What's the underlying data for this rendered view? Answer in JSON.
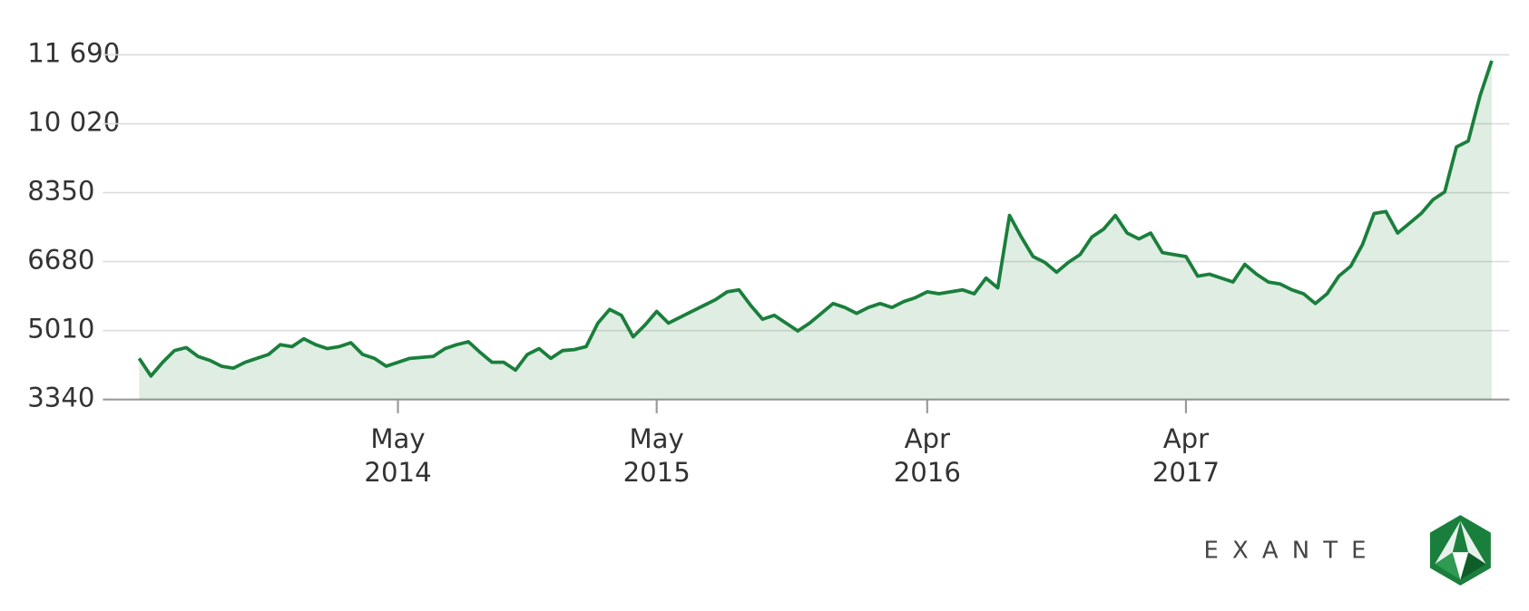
{
  "chart_data": {
    "type": "line",
    "values": [
      4336,
      3909,
      4241,
      4526,
      4597,
      4384,
      4289,
      4147,
      4099,
      4241,
      4336,
      4431,
      4668,
      4621,
      4811,
      4668,
      4574,
      4621,
      4716,
      4431,
      4336,
      4147,
      4241,
      4336,
      4360,
      4384,
      4574,
      4668,
      4740,
      4479,
      4241,
      4241,
      4052,
      4431,
      4574,
      4336,
      4526,
      4550,
      4621,
      5190,
      5522,
      5380,
      4858,
      5143,
      5475,
      5190,
      5333,
      5475,
      5617,
      5759,
      5949,
      5996,
      5617,
      5285,
      5380,
      5190,
      5000,
      5190,
      5427,
      5665,
      5570,
      5427,
      5570,
      5665,
      5570,
      5712,
      5807,
      5949,
      5901,
      5949,
      5996,
      5901,
      6281,
      6044,
      7799,
      7278,
      6803,
      6661,
      6424,
      6661,
      6850,
      7278,
      7467,
      7799,
      7372,
      7230,
      7372,
      6898,
      6850,
      6803,
      6329,
      6376,
      6281,
      6186,
      6613,
      6376,
      6186,
      6139,
      5996,
      5901,
      5665,
      5901,
      6329,
      6566,
      7088,
      7846,
      7894,
      7372,
      7609,
      7846,
      8179,
      8369,
      9460,
      9602,
      10693,
      11547
    ],
    "categories": [
      null,
      null,
      null,
      null,
      null,
      null,
      null,
      null,
      null,
      null,
      null,
      null,
      null,
      null,
      null,
      null,
      null,
      null,
      null,
      null,
      null,
      null,
      "May 2014",
      null,
      null,
      null,
      null,
      null,
      null,
      null,
      null,
      null,
      null,
      null,
      null,
      null,
      null,
      null,
      null,
      null,
      null,
      null,
      null,
      null,
      "May 2015",
      null,
      null,
      null,
      null,
      null,
      null,
      null,
      null,
      null,
      null,
      null,
      null,
      null,
      null,
      null,
      null,
      null,
      null,
      null,
      null,
      null,
      null,
      "Apr 2016",
      null,
      null,
      null,
      null,
      null,
      null,
      null,
      null,
      null,
      null,
      null,
      null,
      null,
      null,
      null,
      null,
      null,
      null,
      null,
      null,
      null,
      "Apr 2017",
      null,
      null,
      null,
      null,
      null,
      null,
      null,
      null,
      null,
      null,
      null,
      null,
      null,
      null,
      null,
      null,
      null,
      null,
      null,
      null,
      null,
      null,
      null,
      null,
      null,
      null
    ],
    "color": "#1a7f3c",
    "ylim": [
      3340,
      11690
    ],
    "yticks": [
      3340,
      {
        "value": 5010,
        "label": "5010"
      },
      6680,
      8350,
      {
        "value": 10020,
        "label": "10 020"
      },
      {
        "value": 11690,
        "label": "11 690"
      }
    ],
    "grid": true,
    "brand": "EXANTE"
  }
}
